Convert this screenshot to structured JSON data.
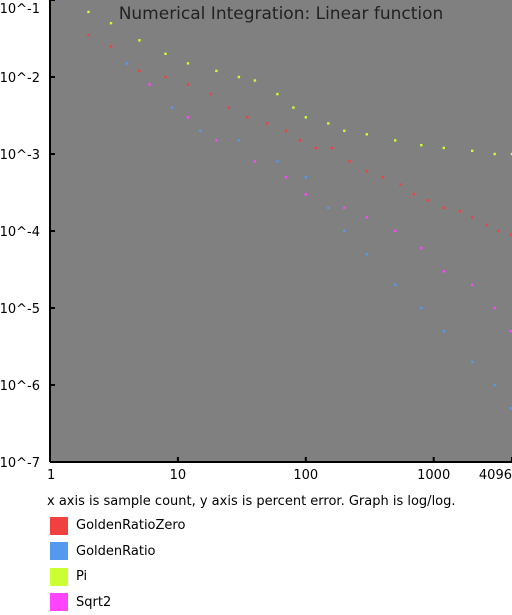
{
  "chart_data": {
    "type": "scatter",
    "title": "Numerical Integration: Linear function",
    "caption": "x axis is sample count, y axis is percent error. Graph is log/log.",
    "x_scale": "log2",
    "y_scale": "log10",
    "xlim": [
      1,
      4096
    ],
    "ylim": [
      1e-07,
      0.1
    ],
    "x_tick_labels": [
      "1",
      "10",
      "100",
      "1000",
      "4096"
    ],
    "x_ticks": [
      1,
      10,
      100,
      1000,
      4096
    ],
    "y_tick_labels": [
      "10^-1",
      "10^-2",
      "10^-3",
      "10^-4",
      "10^-5",
      "10^-6",
      "10^-7"
    ],
    "y_ticks": [
      0.1,
      0.01,
      0.001,
      0.0001,
      1e-05,
      1e-06,
      1e-07
    ],
    "background": "#808080",
    "series": [
      {
        "name": "GoldenRatioZero",
        "color": "#f04040",
        "points": [
          [
            2,
            0.035
          ],
          [
            3,
            0.025
          ],
          [
            5,
            0.012
          ],
          [
            8,
            0.01
          ],
          [
            12,
            0.008
          ],
          [
            18,
            0.006
          ],
          [
            25,
            0.004
          ],
          [
            35,
            0.003
          ],
          [
            50,
            0.0025
          ],
          [
            70,
            0.002
          ],
          [
            90,
            0.0015
          ],
          [
            120,
            0.0012
          ],
          [
            160,
            0.0012
          ],
          [
            220,
            0.0008
          ],
          [
            300,
            0.0006
          ],
          [
            400,
            0.0005
          ],
          [
            550,
            0.0004
          ],
          [
            700,
            0.0003
          ],
          [
            900,
            0.00025
          ],
          [
            1200,
            0.0002
          ],
          [
            1600,
            0.00018
          ],
          [
            2000,
            0.00015
          ],
          [
            2600,
            0.00012
          ],
          [
            3200,
            0.0001
          ],
          [
            4000,
            9e-05
          ]
        ]
      },
      {
        "name": "GoldenRatio",
        "color": "#5599ee",
        "points": [
          [
            4,
            0.015
          ],
          [
            9,
            0.004
          ],
          [
            15,
            0.002
          ],
          [
            30,
            0.0015
          ],
          [
            60,
            0.0008
          ],
          [
            100,
            0.0005
          ],
          [
            150,
            0.0002
          ],
          [
            200,
            0.0001
          ],
          [
            300,
            5e-05
          ],
          [
            500,
            2e-05
          ],
          [
            800,
            1e-05
          ],
          [
            1200,
            5e-06
          ],
          [
            2000,
            2e-06
          ],
          [
            3000,
            1e-06
          ],
          [
            4000,
            5e-07
          ]
        ]
      },
      {
        "name": "Pi",
        "color": "#ccff33",
        "points": [
          [
            1,
            0.1
          ],
          [
            2,
            0.07
          ],
          [
            3,
            0.05
          ],
          [
            5,
            0.03
          ],
          [
            8,
            0.02
          ],
          [
            12,
            0.015
          ],
          [
            20,
            0.012
          ],
          [
            30,
            0.01
          ],
          [
            40,
            0.009
          ],
          [
            60,
            0.006
          ],
          [
            80,
            0.004
          ],
          [
            100,
            0.003
          ],
          [
            150,
            0.0025
          ],
          [
            200,
            0.002
          ],
          [
            300,
            0.0018
          ],
          [
            500,
            0.0015
          ],
          [
            800,
            0.0013
          ],
          [
            1200,
            0.0012
          ],
          [
            2000,
            0.0011
          ],
          [
            3000,
            0.001
          ],
          [
            4096,
            0.001
          ]
        ]
      },
      {
        "name": "Sqrt2",
        "color": "#ff44ff",
        "points": [
          [
            6,
            0.008
          ],
          [
            12,
            0.003
          ],
          [
            20,
            0.0015
          ],
          [
            40,
            0.0008
          ],
          [
            70,
            0.0005
          ],
          [
            100,
            0.0003
          ],
          [
            200,
            0.0002
          ],
          [
            300,
            0.00015
          ],
          [
            500,
            0.0001
          ],
          [
            800,
            6e-05
          ],
          [
            1200,
            3e-05
          ],
          [
            2000,
            2e-05
          ],
          [
            3000,
            1e-05
          ],
          [
            4000,
            5e-06
          ]
        ]
      }
    ]
  }
}
